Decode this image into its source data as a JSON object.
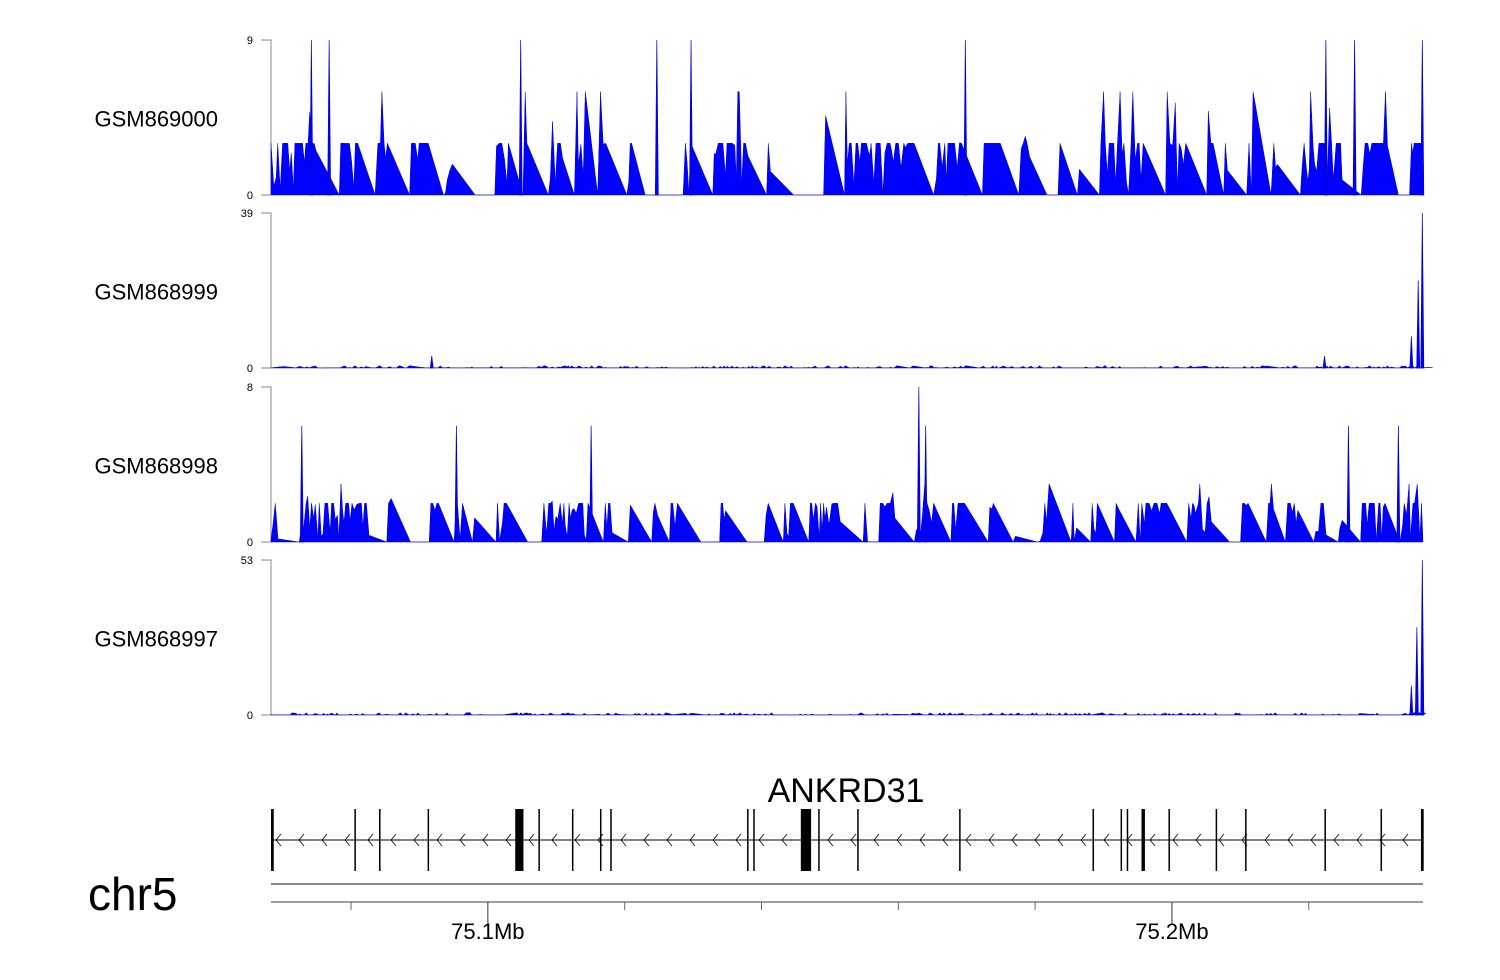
{
  "chart_data": {
    "type": "area",
    "title": "",
    "chromosome": "chr5",
    "xrange_mb": [
      75.0683,
      75.2367
    ],
    "axis": {
      "major_ticks_mb": [
        75.1,
        75.2
      ],
      "major_labels": [
        "75.1Mb",
        "75.2Mb"
      ],
      "minor_ticks_mb": [
        75.08,
        75.12,
        75.14,
        75.16,
        75.18,
        75.22
      ]
    },
    "fill_color": "#0000ff",
    "tracks": [
      {
        "name": "GSM869000",
        "ylim": [
          0,
          9
        ],
        "ymax_label": "9",
        "ymin_label": "0",
        "baseline": 3,
        "noise": "dense",
        "peaks": [
          [
            75.0742,
            9
          ],
          [
            75.0768,
            9
          ],
          [
            75.1048,
            9
          ],
          [
            75.1247,
            9
          ],
          [
            75.1297,
            9
          ],
          [
            75.1698,
            9
          ],
          [
            75.2225,
            9
          ],
          [
            75.2267,
            9
          ],
          [
            75.2366,
            9
          ]
        ]
      },
      {
        "name": "GSM868999",
        "ylim": [
          0,
          39
        ],
        "ymax_label": "39",
        "ymin_label": "0",
        "baseline": 0.6,
        "noise": "sparse",
        "peaks": [
          [
            75.0918,
            3
          ],
          [
            75.2223,
            3
          ],
          [
            75.235,
            8
          ],
          [
            75.236,
            22
          ],
          [
            75.2366,
            39
          ]
        ]
      },
      {
        "name": "GSM868998",
        "ylim": [
          0,
          8
        ],
        "ymax_label": "8",
        "ymin_label": "0",
        "baseline": 2,
        "noise": "dense",
        "peaks": [
          [
            75.0728,
            6
          ],
          [
            75.0954,
            6
          ],
          [
            75.1151,
            6
          ],
          [
            75.163,
            8
          ],
          [
            75.164,
            6
          ],
          [
            75.2258,
            6
          ],
          [
            75.2331,
            6
          ]
        ]
      },
      {
        "name": "GSM868997",
        "ylim": [
          0,
          53
        ],
        "ymax_label": "53",
        "ymin_label": "0",
        "baseline": 0.8,
        "noise": "sparse",
        "peaks": [
          [
            75.235,
            10
          ],
          [
            75.2358,
            30
          ],
          [
            75.2366,
            53
          ]
        ]
      }
    ],
    "gene_track": {
      "gene": "ANKRD31",
      "strand": "-",
      "exons_mb": [
        [
          75.0685,
          0.4
        ],
        [
          75.0806,
          0.1
        ],
        [
          75.0842,
          0.1
        ],
        [
          75.0913,
          0.1
        ],
        [
          75.1046,
          1.2
        ],
        [
          75.1075,
          0.1
        ],
        [
          75.1124,
          0.1
        ],
        [
          75.1165,
          0.1
        ],
        [
          75.118,
          0.1
        ],
        [
          75.138,
          0.1
        ],
        [
          75.1389,
          0.1
        ],
        [
          75.1465,
          1.5
        ],
        [
          75.1484,
          0.1
        ],
        [
          75.1541,
          0.1
        ],
        [
          75.169,
          0.1
        ],
        [
          75.1885,
          0.1
        ],
        [
          75.1926,
          0.1
        ],
        [
          75.1935,
          0.1
        ],
        [
          75.1958,
          0.5
        ],
        [
          75.1996,
          0.1
        ],
        [
          75.2065,
          0.1
        ],
        [
          75.2108,
          0.1
        ],
        [
          75.2224,
          0.1
        ],
        [
          75.2306,
          0.1
        ],
        [
          75.2366,
          0.4
        ]
      ]
    }
  }
}
